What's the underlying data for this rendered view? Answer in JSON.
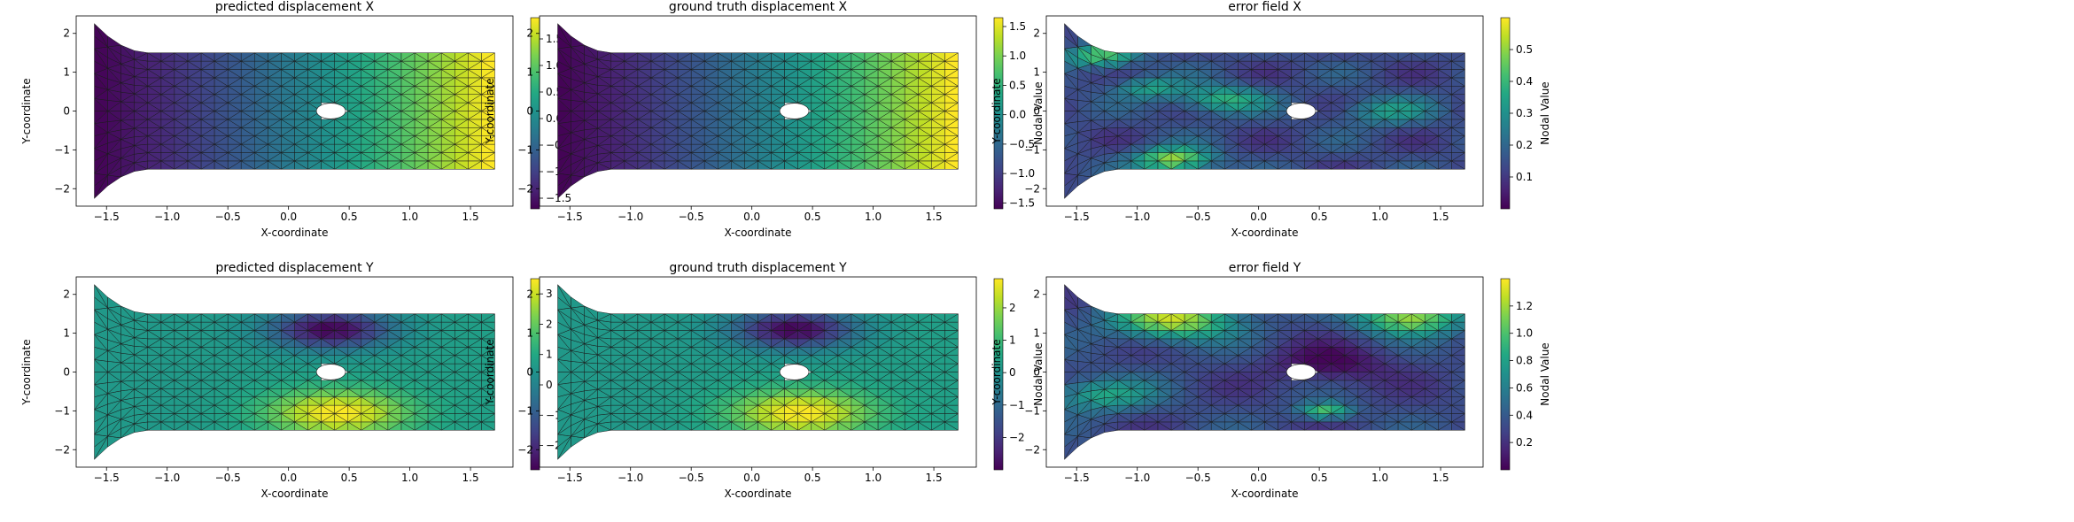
{
  "chart_data": [
    {
      "type": "heatmap",
      "title": "predicted displacement X",
      "xlabel": "X-coordinate",
      "ylabel": "Y-coordinate",
      "xlim": [
        -1.75,
        1.85
      ],
      "ylim": [
        -2.45,
        2.45
      ],
      "xticks": [
        -1.5,
        -1.0,
        -0.5,
        0.0,
        0.5,
        1.0,
        1.5
      ],
      "yticks": [
        -2,
        -1,
        0,
        1,
        2
      ],
      "colorbar": {
        "label": "Nodal Value",
        "range": [
          -1.7,
          1.9
        ],
        "ticks": [
          -1.5,
          -1.0,
          -0.5,
          0.0,
          0.5,
          1.0,
          1.5
        ]
      },
      "field": {
        "kind": "disp_x",
        "min": -1.7,
        "max": 1.9
      }
    },
    {
      "type": "heatmap",
      "title": "ground truth displacement X",
      "xlabel": "X-coordinate",
      "ylabel": "Y-coordinate",
      "xlim": [
        -1.75,
        1.85
      ],
      "ylim": [
        -2.45,
        2.45
      ],
      "xticks": [
        -1.5,
        -1.0,
        -0.5,
        0.0,
        0.5,
        1.0,
        1.5
      ],
      "yticks": [
        -2,
        -1,
        0,
        1,
        2
      ],
      "colorbar": {
        "label": "Nodal Value",
        "range": [
          -1.6,
          1.65
        ],
        "ticks": [
          -1.5,
          -1.0,
          -0.5,
          0.0,
          0.5,
          1.0,
          1.5
        ]
      },
      "field": {
        "kind": "disp_x",
        "min": -1.6,
        "max": 1.65
      }
    },
    {
      "type": "heatmap",
      "title": "error field X",
      "xlabel": "X-coordinate",
      "ylabel": "Y-coordinate",
      "xlim": [
        -1.75,
        1.85
      ],
      "ylim": [
        -2.45,
        2.45
      ],
      "xticks": [
        -1.5,
        -1.0,
        -0.5,
        0.0,
        0.5,
        1.0,
        1.5
      ],
      "yticks": [
        -2,
        -1,
        0,
        1,
        2
      ],
      "colorbar": {
        "label": "Nodal Value",
        "range": [
          0.0,
          0.6
        ],
        "ticks": [
          0.1,
          0.2,
          0.3,
          0.4,
          0.5
        ]
      },
      "field": {
        "kind": "error_x",
        "min": 0.0,
        "max": 0.6
      }
    },
    {
      "type": "heatmap",
      "title": "predicted displacement Y",
      "xlabel": "X-coordinate",
      "ylabel": "Y-coordinate",
      "xlim": [
        -1.75,
        1.85
      ],
      "ylim": [
        -2.45,
        2.45
      ],
      "xticks": [
        -1.5,
        -1.0,
        -0.5,
        0.0,
        0.5,
        1.0,
        1.5
      ],
      "yticks": [
        -2,
        -1,
        0,
        1,
        2
      ],
      "colorbar": {
        "label": "Nodal Value",
        "range": [
          -2.8,
          3.5
        ],
        "ticks": [
          -2,
          -1,
          0,
          1,
          2,
          3
        ]
      },
      "field": {
        "kind": "disp_y",
        "min": -2.8,
        "max": 3.5
      }
    },
    {
      "type": "heatmap",
      "title": "ground truth displacement Y",
      "xlabel": "X-coordinate",
      "ylabel": "Y-coordinate",
      "xlim": [
        -1.75,
        1.85
      ],
      "ylim": [
        -2.45,
        2.45
      ],
      "xticks": [
        -1.5,
        -1.0,
        -0.5,
        0.0,
        0.5,
        1.0,
        1.5
      ],
      "yticks": [
        -2,
        -1,
        0,
        1,
        2
      ],
      "colorbar": {
        "label": "Nodal Value",
        "range": [
          -3.0,
          2.9
        ],
        "ticks": [
          -2,
          -1,
          0,
          1,
          2
        ]
      },
      "field": {
        "kind": "disp_y",
        "min": -3.0,
        "max": 2.9
      }
    },
    {
      "type": "heatmap",
      "title": "error field Y",
      "xlabel": "X-coordinate",
      "ylabel": "Y-coordinate",
      "xlim": [
        -1.75,
        1.85
      ],
      "ylim": [
        -2.45,
        2.45
      ],
      "xticks": [
        -1.5,
        -1.0,
        -0.5,
        0.0,
        0.5,
        1.0,
        1.5
      ],
      "yticks": [
        -2,
        -1,
        0,
        1,
        2
      ],
      "colorbar": {
        "label": "Nodal Value",
        "range": [
          0.0,
          1.4
        ],
        "ticks": [
          0.2,
          0.4,
          0.6,
          0.8,
          1.0,
          1.2
        ]
      },
      "field": {
        "kind": "error_y",
        "min": 0.0,
        "max": 1.4
      }
    }
  ],
  "geometry": {
    "bar_x": [
      -1.6,
      1.7
    ],
    "bar_y": [
      -1.5,
      1.5
    ],
    "flare_top": 2.25,
    "flare_bottom": -2.25,
    "hole_center": [
      0.35,
      0.0
    ],
    "hole_radii": [
      0.12,
      0.2
    ]
  },
  "colormap": "viridis"
}
